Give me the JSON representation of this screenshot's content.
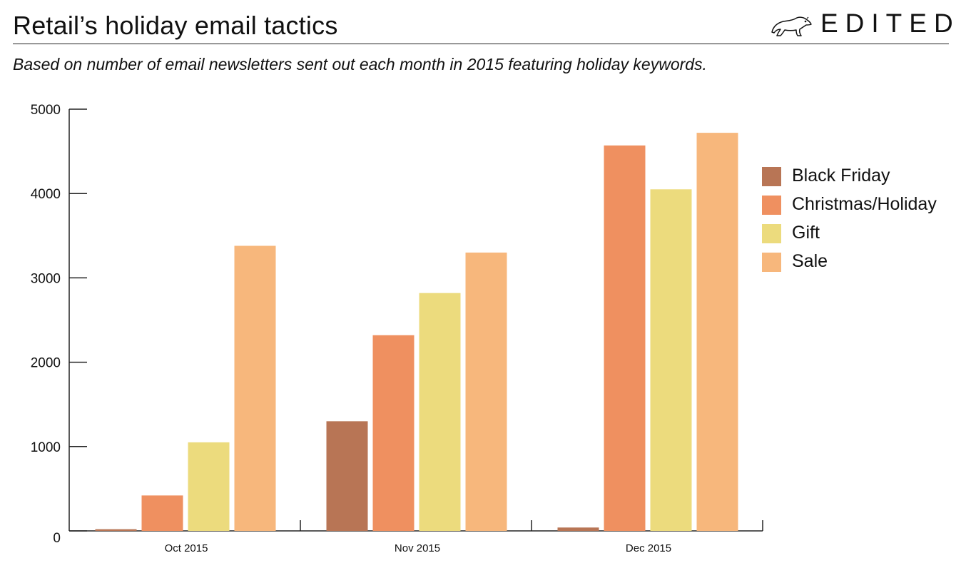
{
  "header": {
    "title": "Retail’s holiday email tactics",
    "subtitle": "Based on number of email newsletters sent out each month in 2015 featuring holiday keywords.",
    "brand": "EDITED",
    "logo_icon": "polar-bear-icon"
  },
  "colors": {
    "black_friday": "#b87555",
    "christmas_holiday": "#ef9060",
    "gift": "#ecdb7d",
    "sale": "#f7b77c",
    "axis": "#222222",
    "text": "#111111"
  },
  "chart_data": {
    "type": "bar",
    "title": "Retail’s holiday email tactics",
    "subtitle": "Based on number of email newsletters sent out each month in 2015 featuring holiday keywords.",
    "xlabel": "",
    "ylabel": "",
    "categories": [
      "Oct 2015",
      "Nov 2015",
      "Dec 2015"
    ],
    "series": [
      {
        "name": "Black Friday",
        "values": [
          20,
          1300,
          40
        ],
        "color": "#b87555"
      },
      {
        "name": "Christmas/Holiday",
        "values": [
          420,
          2320,
          4570
        ],
        "color": "#ef9060"
      },
      {
        "name": "Gift",
        "values": [
          1050,
          2820,
          4050
        ],
        "color": "#ecdb7d"
      },
      {
        "name": "Sale",
        "values": [
          3380,
          3300,
          4720
        ],
        "color": "#f7b77c"
      }
    ],
    "ylim": [
      0,
      5000
    ],
    "yticks": [
      0,
      1000,
      2000,
      3000,
      4000,
      5000
    ],
    "grid": false,
    "legend": "right"
  }
}
